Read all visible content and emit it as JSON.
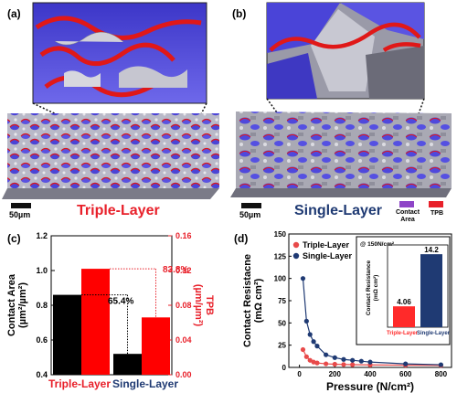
{
  "panels": {
    "a": {
      "tag": "(a)",
      "label": "Triple-Layer",
      "label_color": "#e8202a",
      "scale": "50µm"
    },
    "b": {
      "tag": "(b)",
      "label": "Single-Layer",
      "label_color": "#1f3a73",
      "scale": "50µm",
      "legend": [
        {
          "name": "Contact Area",
          "color": "#8e44c7"
        },
        {
          "name": "TPB",
          "color": "#e8202a"
        }
      ]
    },
    "c": {
      "tag": "(c)"
    },
    "d": {
      "tag": "(d)"
    }
  },
  "chart_data": [
    {
      "type": "bar",
      "panel": "c",
      "categories": [
        "Triple-Layer",
        "Single-Layer"
      ],
      "category_colors": [
        "#e8202a",
        "#1f3a73"
      ],
      "series": [
        {
          "name": "Contact Area",
          "axis": "left",
          "color": "#000000",
          "values": [
            0.86,
            0.52
          ]
        },
        {
          "name": "TPB",
          "axis": "right",
          "color": "#ff0000",
          "values": [
            0.122,
            0.066
          ]
        }
      ],
      "ylabel_left": "Contact Area (µm²/µm²)",
      "ylim_left": [
        0.4,
        1.2
      ],
      "yticks_left": [
        "0.4",
        "0.6",
        "0.8",
        "1.0",
        "1.2"
      ],
      "ylabel_right": "TPB (µm/µm²)",
      "ylim_right": [
        0.0,
        0.16
      ],
      "yticks_right": [
        "0.00",
        "0.04",
        "0.08",
        "0.12",
        "0.16"
      ],
      "annotations": [
        "65.4%",
        "83.8%"
      ]
    },
    {
      "type": "scatter",
      "panel": "d",
      "xlabel": "Pressure (N/cm²)",
      "ylabel": "Contact Resistacne (mΩ cm²)",
      "xlim": [
        -60,
        860
      ],
      "ylim": [
        0,
        150
      ],
      "xticks": [
        "0",
        "200",
        "400",
        "600",
        "800"
      ],
      "yticks": [
        "0",
        "25",
        "50",
        "75",
        "100",
        "125",
        "150"
      ],
      "legend_position": "top-left",
      "series": [
        {
          "name": "Triple-Layer",
          "color": "#e84a4a",
          "x": [
            20,
            40,
            60,
            80,
            100,
            150,
            200,
            250,
            300,
            400,
            600,
            800
          ],
          "y": [
            20,
            12,
            8,
            6,
            5,
            4.06,
            3.6,
            3.3,
            3.1,
            2.8,
            2.5,
            2.3
          ]
        },
        {
          "name": "Single-Layer",
          "color": "#1f3a73",
          "x": [
            20,
            40,
            60,
            80,
            100,
            150,
            200,
            250,
            300,
            350,
            400,
            600,
            800
          ],
          "y": [
            100,
            52,
            37,
            29,
            24,
            14.2,
            11,
            9,
            8,
            7,
            6,
            4,
            3
          ]
        }
      ],
      "inset": {
        "type": "bar",
        "title": "@ 150N/cm²",
        "ylabel": "Contact Resistance (mΩ cm²)",
        "categories": [
          "Triple-Layer",
          "Single-Layer"
        ],
        "values": [
          4.06,
          14.2
        ],
        "value_labels": [
          "4.06",
          "14.2"
        ],
        "colors": [
          "#ff2a2a",
          "#1f3a73"
        ],
        "ylim": [
          0,
          16
        ]
      }
    }
  ]
}
